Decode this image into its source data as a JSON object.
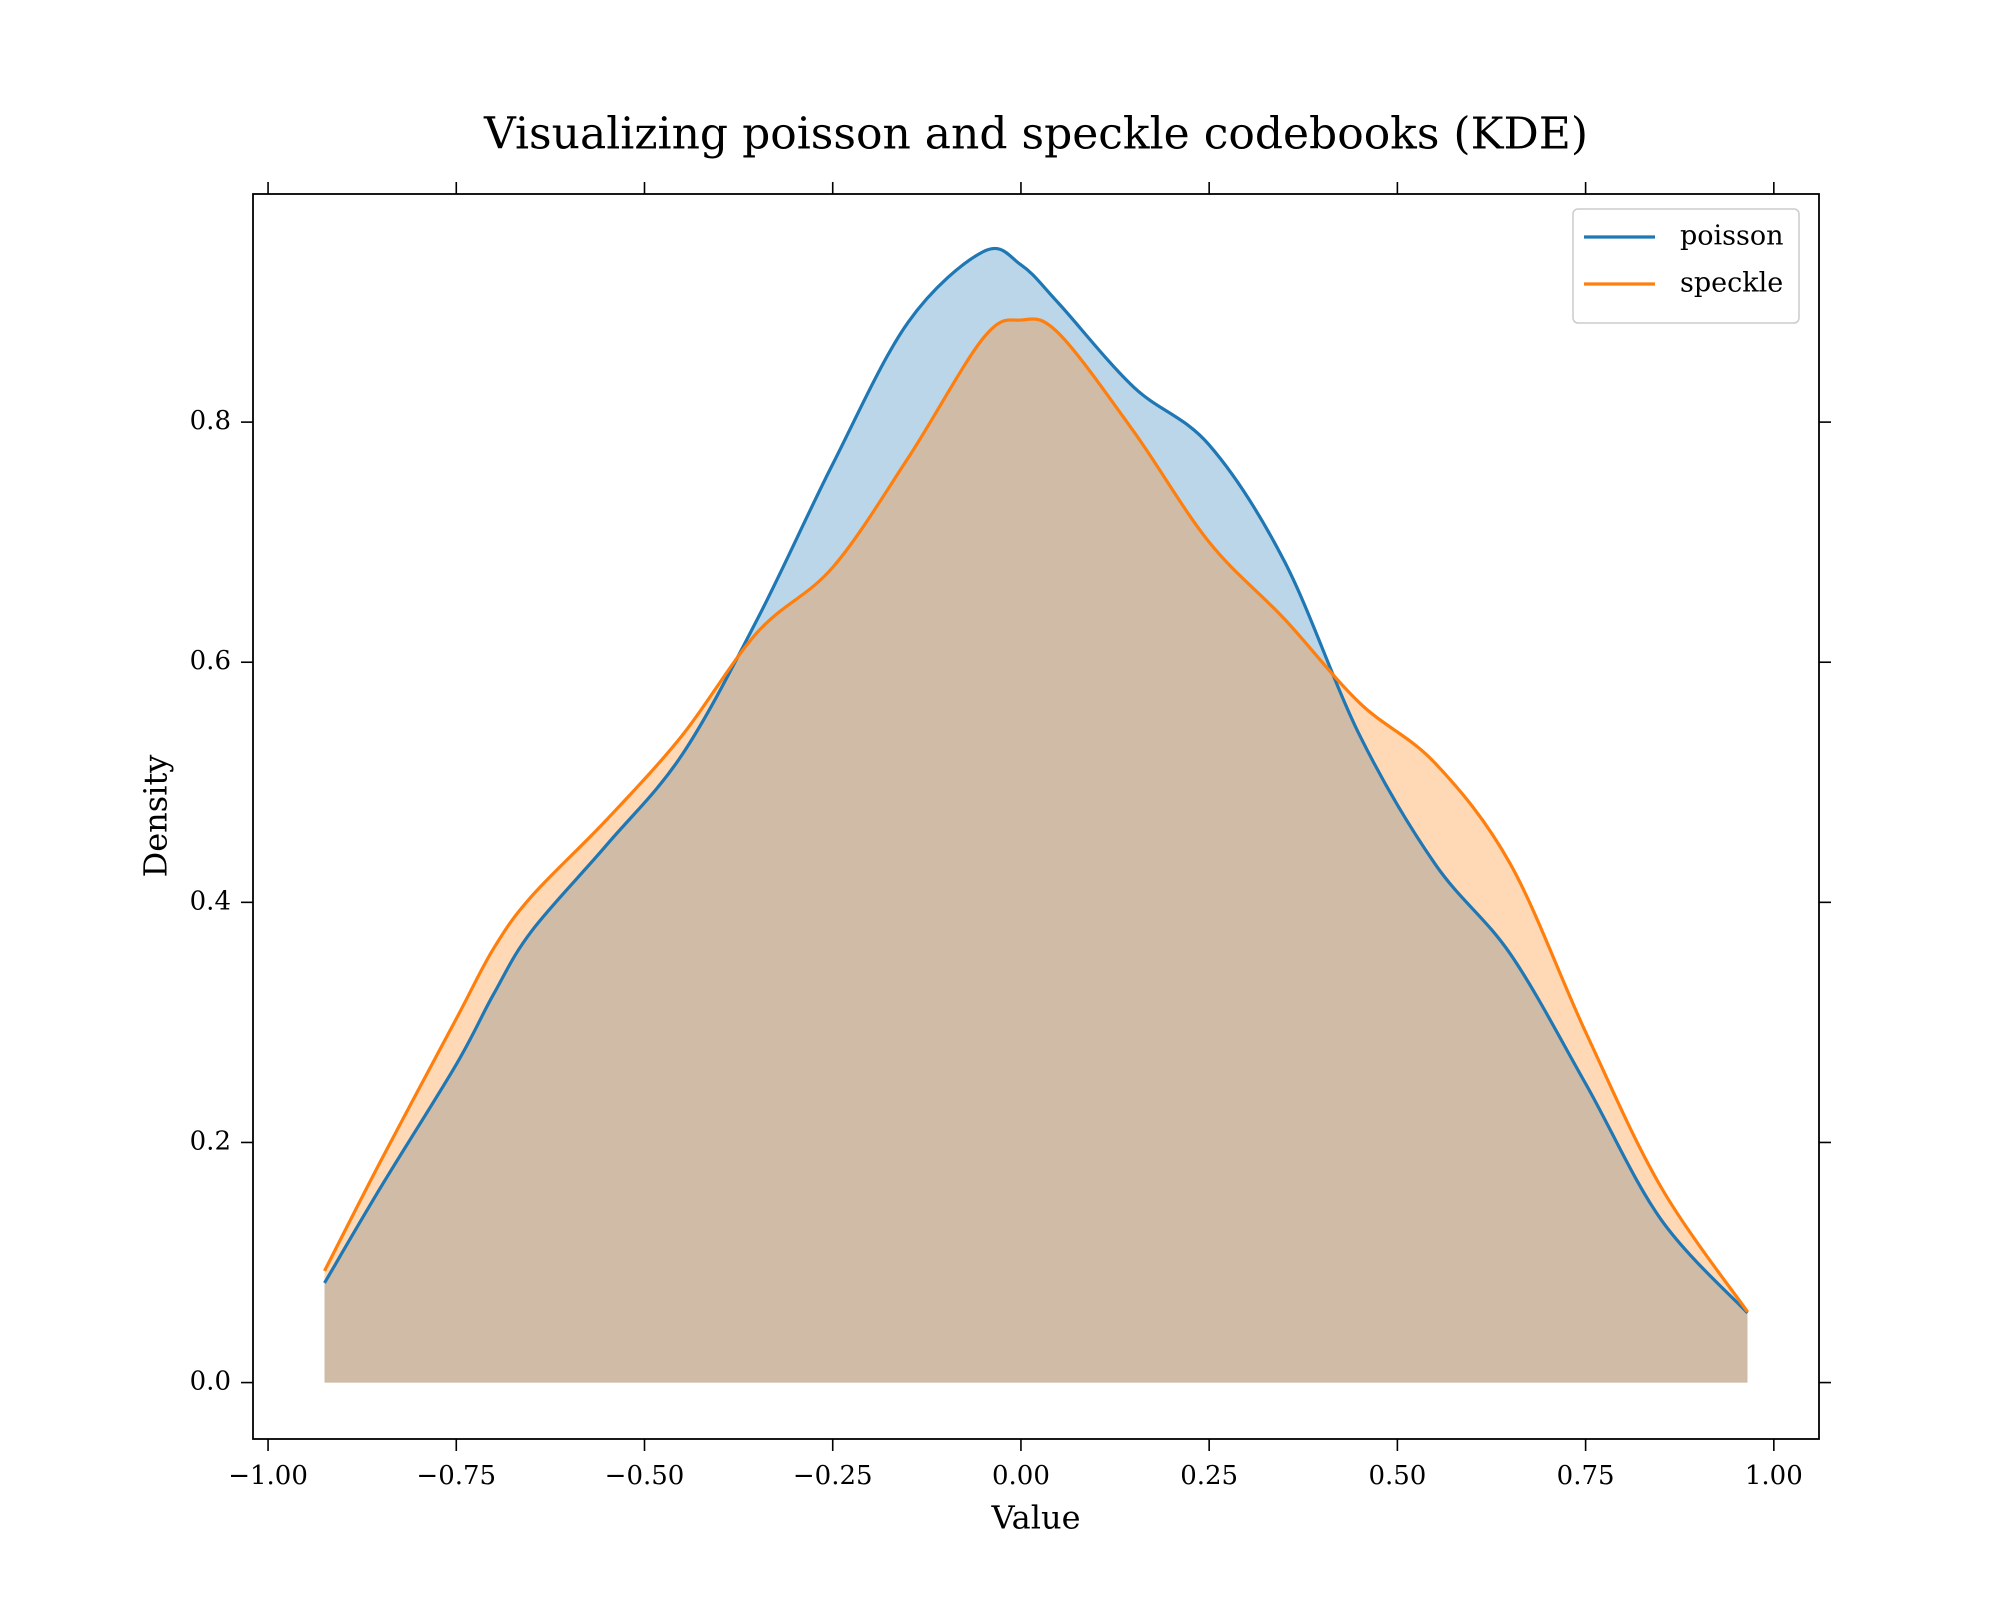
{
  "chart_data": {
    "type": "area",
    "title": "Visualizing poisson and speckle codebooks (KDE)",
    "xlabel": "Value",
    "ylabel": "Density",
    "x": [
      -0.925,
      -0.85,
      -0.75,
      -0.7,
      -0.65,
      -0.55,
      -0.45,
      -0.35,
      -0.25,
      -0.15,
      -0.05,
      0.0,
      0.05,
      0.15,
      0.25,
      0.35,
      0.45,
      0.55,
      0.65,
      0.75,
      0.85,
      0.965
    ],
    "series": [
      {
        "name": "poisson",
        "color": "#1f77b4",
        "values": [
          0.083,
          0.163,
          0.265,
          0.324,
          0.376,
          0.448,
          0.523,
          0.636,
          0.765,
          0.883,
          0.942,
          0.931,
          0.899,
          0.829,
          0.781,
          0.684,
          0.539,
          0.432,
          0.357,
          0.249,
          0.136,
          0.058
        ]
      },
      {
        "name": "speckle",
        "color": "#ff7f0e",
        "values": [
          0.093,
          0.185,
          0.303,
          0.362,
          0.405,
          0.469,
          0.539,
          0.625,
          0.679,
          0.77,
          0.87,
          0.885,
          0.874,
          0.792,
          0.7,
          0.636,
          0.566,
          0.516,
          0.432,
          0.292,
          0.163,
          0.059
        ]
      }
    ],
    "fill_alpha": 0.3,
    "xlim": [
      -1.02,
      1.06
    ],
    "ylim": [
      -0.047,
      0.99
    ],
    "xticks": [
      {
        "value": -1,
        "label": "−1.00"
      },
      {
        "value": -0.75,
        "label": "−0.75"
      },
      {
        "value": -0.5,
        "label": "−0.50"
      },
      {
        "value": -0.25,
        "label": "−0.25"
      },
      {
        "value": 0,
        "label": "0.00"
      },
      0.25,
      {
        "value": 0.5,
        "label": "0.50"
      },
      0.75,
      {
        "value": 1,
        "label": "1.00"
      }
    ],
    "yticks": [
      {
        "value": 0,
        "label": "0.0"
      },
      0.2,
      0.4,
      0.6,
      0.8
    ],
    "grid": false,
    "legend": "upper right"
  }
}
